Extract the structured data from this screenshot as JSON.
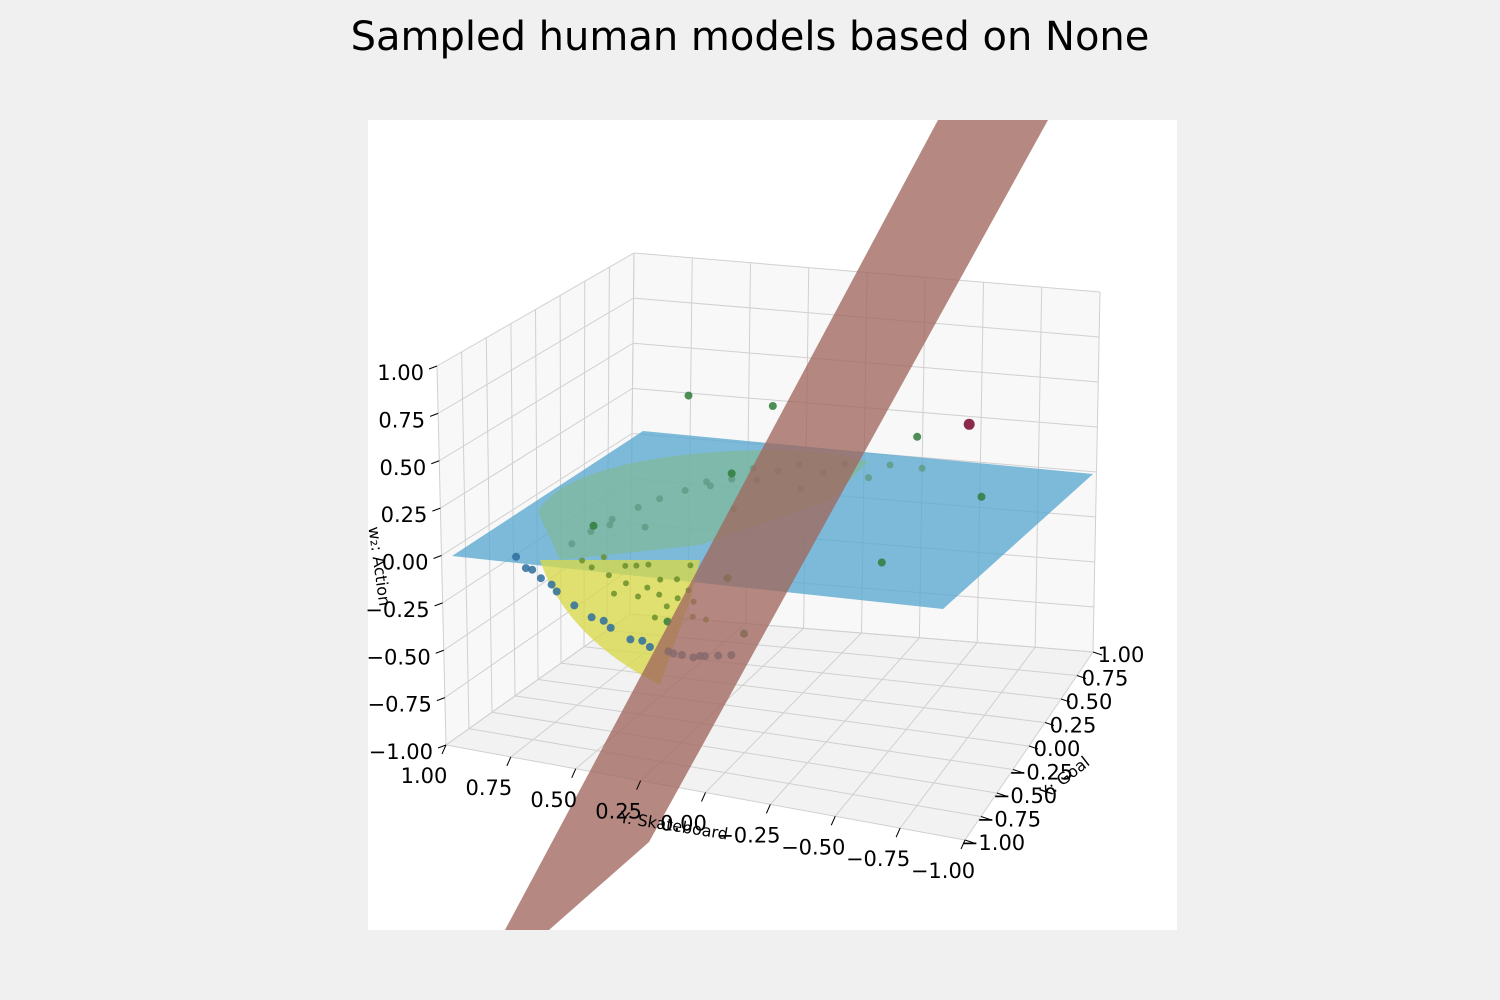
{
  "chart_data": {
    "type": "scatter",
    "projection": "3d",
    "title": "Sampled human models based on None",
    "xlabel": "X: Goal",
    "ylabel": "Y: Skateboard",
    "zlabel": "w₂: Action",
    "xlim": [
      -1,
      1
    ],
    "ylim": [
      -1,
      1
    ],
    "zlim": [
      -1,
      1
    ],
    "grid": true,
    "x_ticks": [
      "−1.00",
      "−0.75",
      "−0.50",
      "−0.25",
      "0.00",
      "0.25",
      "0.50",
      "0.75",
      "1.00"
    ],
    "y_ticks": [
      "1.00",
      "0.75",
      "0.50",
      "0.25",
      "0.00",
      "−0.25",
      "−0.50",
      "−0.75",
      "−1.00"
    ],
    "z_ticks": [
      "1.00",
      "0.75",
      "0.50",
      "0.25",
      "0.00",
      "−0.25",
      "−0.50",
      "−0.75",
      "−1.00"
    ],
    "surfaces": [
      {
        "name": "constraint plane",
        "color": "#a0685d"
      },
      {
        "name": "w2 = 0 plane",
        "color": "#5aa8d0"
      },
      {
        "name": "upper hemisphere",
        "color": "#7fb89a"
      },
      {
        "name": "lower cap",
        "color": "#d8d84a"
      }
    ],
    "series": [
      {
        "marker_color": "#2e6f9e",
        "points": [
          {
            "x": -0.8,
            "y": 0.75,
            "z": -0.08
          },
          {
            "x": -0.78,
            "y": 0.7,
            "z": -0.13
          },
          {
            "x": -0.75,
            "y": 0.65,
            "z": -0.2
          },
          {
            "x": -0.7,
            "y": 0.6,
            "z": -0.28
          },
          {
            "x": -0.65,
            "y": 0.55,
            "z": -0.35
          },
          {
            "x": -0.58,
            "y": 0.5,
            "z": -0.42
          },
          {
            "x": -0.5,
            "y": 0.45,
            "z": -0.5
          },
          {
            "x": -0.42,
            "y": 0.4,
            "z": -0.56
          },
          {
            "x": -0.35,
            "y": 0.35,
            "z": -0.6
          },
          {
            "x": -0.28,
            "y": 0.32,
            "z": -0.64
          },
          {
            "x": -0.2,
            "y": 0.3,
            "z": -0.68
          },
          {
            "x": -0.12,
            "y": 0.28,
            "z": -0.7
          },
          {
            "x": -0.05,
            "y": 0.25,
            "z": -0.72
          },
          {
            "x": 0.02,
            "y": 0.22,
            "z": -0.74
          },
          {
            "x": -0.82,
            "y": 0.78,
            "z": -0.02
          },
          {
            "x": -0.76,
            "y": 0.74,
            "z": -0.1
          },
          {
            "x": -0.72,
            "y": 0.68,
            "z": -0.18
          },
          {
            "x": -0.6,
            "y": 0.52,
            "z": -0.38
          },
          {
            "x": -0.45,
            "y": 0.42,
            "z": -0.52
          },
          {
            "x": -0.32,
            "y": 0.34,
            "z": -0.62
          },
          {
            "x": -0.15,
            "y": 0.29,
            "z": -0.69
          }
        ]
      },
      {
        "marker_color": "#6b8f2a",
        "points": [
          {
            "x": -0.5,
            "y": 0.6,
            "z": -0.15
          },
          {
            "x": -0.45,
            "y": 0.55,
            "z": -0.2
          },
          {
            "x": -0.4,
            "y": 0.5,
            "z": -0.25
          },
          {
            "x": -0.35,
            "y": 0.52,
            "z": -0.18
          },
          {
            "x": -0.3,
            "y": 0.45,
            "z": -0.3
          },
          {
            "x": -0.25,
            "y": 0.42,
            "z": -0.35
          },
          {
            "x": -0.2,
            "y": 0.48,
            "z": -0.22
          },
          {
            "x": -0.15,
            "y": 0.38,
            "z": -0.4
          },
          {
            "x": -0.1,
            "y": 0.4,
            "z": -0.32
          },
          {
            "x": -0.05,
            "y": 0.35,
            "z": -0.45
          },
          {
            "x": 0.0,
            "y": 0.38,
            "z": -0.28
          },
          {
            "x": -0.55,
            "y": 0.62,
            "z": -0.1
          },
          {
            "x": -0.42,
            "y": 0.58,
            "z": -0.12
          },
          {
            "x": -0.28,
            "y": 0.5,
            "z": -0.2
          },
          {
            "x": -0.18,
            "y": 0.44,
            "z": -0.3
          },
          {
            "x": -0.08,
            "y": 0.36,
            "z": -0.38
          },
          {
            "x": -0.38,
            "y": 0.46,
            "z": -0.32
          },
          {
            "x": -0.22,
            "y": 0.4,
            "z": -0.42
          },
          {
            "x": -0.12,
            "y": 0.33,
            "z": -0.5
          },
          {
            "x": -0.48,
            "y": 0.52,
            "z": -0.28
          },
          {
            "x": -0.33,
            "y": 0.41,
            "z": -0.44
          },
          {
            "x": -0.02,
            "y": 0.31,
            "z": -0.55
          }
        ]
      },
      {
        "marker_color": "#5f9c86",
        "points": [
          {
            "x": -0.7,
            "y": 0.45,
            "z": 0.2
          },
          {
            "x": -0.6,
            "y": 0.3,
            "z": 0.3
          },
          {
            "x": -0.5,
            "y": 0.15,
            "z": 0.38
          },
          {
            "x": -0.4,
            "y": 0.0,
            "z": 0.44
          },
          {
            "x": -0.3,
            "y": -0.15,
            "z": 0.45
          },
          {
            "x": -0.2,
            "y": -0.3,
            "z": 0.44
          },
          {
            "x": -0.1,
            "y": -0.45,
            "z": 0.42
          },
          {
            "x": 0.0,
            "y": -0.55,
            "z": 0.38
          },
          {
            "x": -0.65,
            "y": 0.55,
            "z": 0.1
          },
          {
            "x": -0.55,
            "y": 0.4,
            "z": 0.22
          },
          {
            "x": -0.45,
            "y": 0.25,
            "z": 0.3
          },
          {
            "x": -0.35,
            "y": 0.1,
            "z": 0.35
          },
          {
            "x": -0.25,
            "y": -0.05,
            "z": 0.38
          },
          {
            "x": -0.15,
            "y": -0.2,
            "z": 0.36
          },
          {
            "x": -0.05,
            "y": -0.35,
            "z": 0.32
          },
          {
            "x": -0.72,
            "y": 0.6,
            "z": 0.05
          },
          {
            "x": -0.62,
            "y": 0.35,
            "z": 0.15
          },
          {
            "x": -0.48,
            "y": 0.05,
            "z": 0.25
          },
          {
            "x": -0.3,
            "y": 0.2,
            "z": 0.28
          },
          {
            "x": -0.2,
            "y": 0.05,
            "z": 0.3
          },
          {
            "x": -0.12,
            "y": -0.1,
            "z": 0.25
          },
          {
            "x": -0.58,
            "y": 0.5,
            "z": 0.12
          }
        ]
      },
      {
        "marker_color": "#2f7d3a",
        "points": [
          {
            "x": 0.45,
            "y": 0.55,
            "z": 0.45
          },
          {
            "x": 0.3,
            "y": 0.15,
            "z": 0.5
          },
          {
            "x": -0.35,
            "y": 0.1,
            "z": 0.38
          },
          {
            "x": -0.62,
            "y": 0.55,
            "z": 0.12
          },
          {
            "x": 0.1,
            "y": -0.5,
            "z": 0.5
          },
          {
            "x": 0.15,
            "y": -0.75,
            "z": 0.2
          },
          {
            "x": -0.2,
            "y": -0.45,
            "z": -0.05
          },
          {
            "x": -0.4,
            "y": 0.1,
            "z": -0.15
          },
          {
            "x": -0.45,
            "y": 0.32,
            "z": -0.4
          },
          {
            "x": -0.35,
            "y": 0.05,
            "z": -0.45
          }
        ]
      },
      {
        "marker_color": "#8c2a4a",
        "points": [
          {
            "x": 0.42,
            "y": -0.62,
            "z": 0.46
          }
        ]
      }
    ]
  }
}
